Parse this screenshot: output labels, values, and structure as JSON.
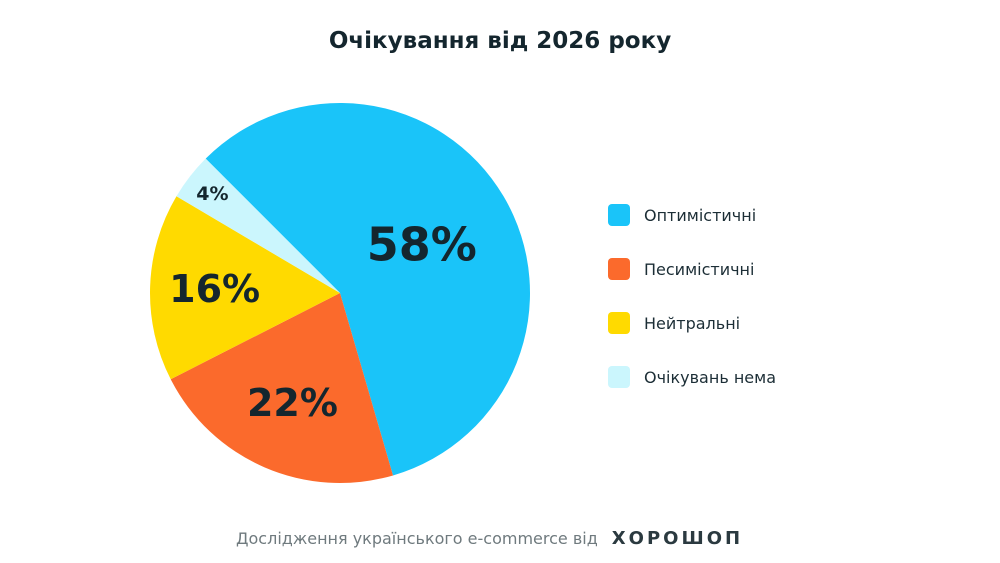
{
  "chart_data": {
    "type": "pie",
    "title": "Очікування від 2026 року",
    "slices": [
      {
        "label": "Оптимістичні",
        "value": 58,
        "display": "58%",
        "color": "#1AC4F9"
      },
      {
        "label": "Песимістичні",
        "value": 22,
        "display": "22%",
        "color": "#FB6A2C"
      },
      {
        "label": "Нейтральні",
        "value": 16,
        "display": "16%",
        "color": "#FFDA00"
      },
      {
        "label": "Очікувань нема",
        "value": 4,
        "display": "4%",
        "color": "#CBF6FD"
      }
    ],
    "legend_position": "right"
  },
  "footer": {
    "text": "Дослідження українського e-commerce від",
    "logo": "ХОРОШОП"
  }
}
